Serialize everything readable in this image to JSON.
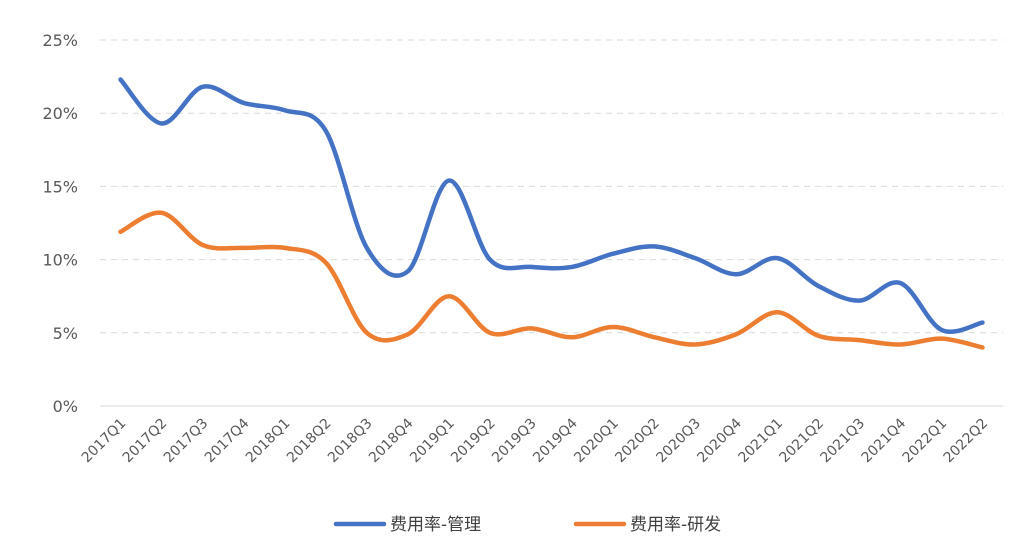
{
  "chart_data": {
    "type": "line",
    "categories": [
      "2017Q1",
      "2017Q2",
      "2017Q3",
      "2017Q4",
      "2018Q1",
      "2018Q2",
      "2018Q3",
      "2018Q4",
      "2019Q1",
      "2019Q2",
      "2019Q3",
      "2019Q4",
      "2020Q1",
      "2020Q2",
      "2020Q3",
      "2020Q4",
      "2021Q1",
      "2021Q2",
      "2021Q3",
      "2021Q4",
      "2022Q1",
      "2022Q2"
    ],
    "series": [
      {
        "name": "费用率-管理",
        "color": "#4472C4",
        "values": [
          0.223,
          0.193,
          0.218,
          0.207,
          0.202,
          0.188,
          0.108,
          0.092,
          0.154,
          0.1,
          0.095,
          0.095,
          0.104,
          0.109,
          0.101,
          0.09,
          0.101,
          0.082,
          0.072,
          0.084,
          0.052,
          0.057
        ]
      },
      {
        "name": "费用率-研发",
        "color": "#ED7D31",
        "values": [
          0.119,
          0.132,
          0.11,
          0.108,
          0.108,
          0.098,
          0.05,
          0.049,
          0.075,
          0.05,
          0.053,
          0.047,
          0.054,
          0.047,
          0.042,
          0.049,
          0.064,
          0.048,
          0.045,
          0.042,
          0.046,
          0.04
        ]
      }
    ],
    "yticks": [
      "0%",
      "5%",
      "10%",
      "15%",
      "20%",
      "25%"
    ],
    "ytick_values": [
      0,
      0.05,
      0.1,
      0.15,
      0.2,
      0.25
    ],
    "ylim": [
      0,
      0.25
    ],
    "grid": true,
    "legend_position": "bottom-center"
  }
}
